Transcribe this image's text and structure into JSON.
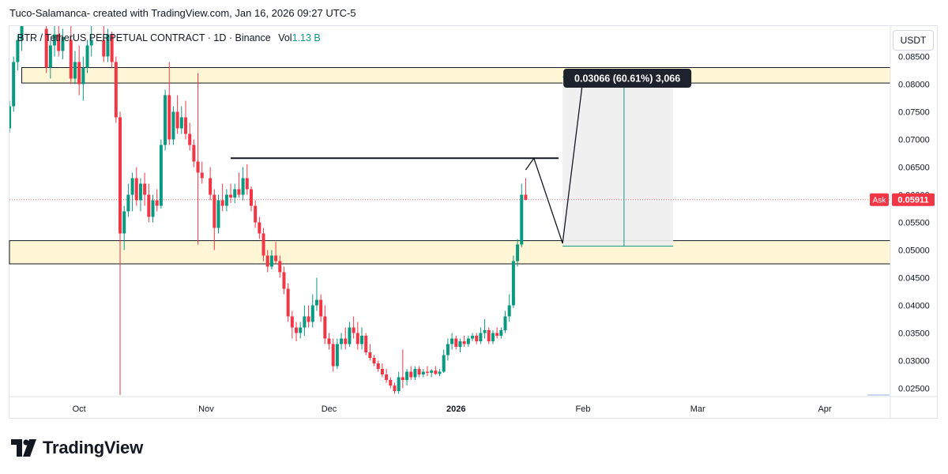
{
  "header": {
    "credit": "Tuco-Salamanca- created with TradingView.com, Jan 16, 2026 09:27 UTC-5"
  },
  "symbol": {
    "pair": "BTR / TetherUS PERPETUAL CONTRACT · 1D · Binance",
    "vol_label": "Vol",
    "vol_value": "1.13 B"
  },
  "currency_button": "USDT",
  "logo": {
    "text": "TradingView"
  },
  "colors": {
    "up": "#089981",
    "down": "#f23645",
    "zone_fill": "#fff6d5",
    "projection_fill": "#eeeeee",
    "ask": "#f23645"
  },
  "chart_data": {
    "type": "candlestick",
    "y_axis": {
      "range": [
        0.0235,
        0.0905
      ],
      "ticks": [
        "0.02500",
        "0.03000",
        "0.03500",
        "0.04000",
        "0.04500",
        "0.05000",
        "0.05500",
        "0.06000",
        "0.06500",
        "0.07000",
        "0.07500",
        "0.08000",
        "0.08500",
        "0.09000"
      ]
    },
    "x_axis": {
      "range": [
        "2025-09-14",
        "2026-04-17"
      ],
      "ticks": [
        {
          "label": "Oct",
          "date": "2025-10-01",
          "bold": false
        },
        {
          "label": "Nov",
          "date": "2025-11-01",
          "bold": false
        },
        {
          "label": "Dec",
          "date": "2025-12-01",
          "bold": false
        },
        {
          "label": "2026",
          "date": "2026-01-01",
          "bold": true
        },
        {
          "label": "Feb",
          "date": "2026-02-01",
          "bold": false
        },
        {
          "label": "Mar",
          "date": "2026-03-01",
          "bold": false
        },
        {
          "label": "Apr",
          "date": "2026-04-01",
          "bold": false
        }
      ]
    },
    "candles": [
      {
        "date": "2025-09-14",
        "o": 0.072,
        "h": 0.077,
        "l": 0.0712,
        "c": 0.076
      },
      {
        "date": "2025-09-15",
        "o": 0.076,
        "h": 0.085,
        "l": 0.075,
        "c": 0.084
      },
      {
        "date": "2025-09-16",
        "o": 0.084,
        "h": 0.089,
        "l": 0.0825,
        "c": 0.088
      },
      {
        "date": "2025-09-17",
        "o": 0.088,
        "h": 0.092,
        "l": 0.086,
        "c": 0.091
      },
      {
        "date": "2025-09-23",
        "o": 0.09,
        "h": 0.092,
        "l": 0.082,
        "c": 0.083
      },
      {
        "date": "2025-09-24",
        "o": 0.083,
        "h": 0.088,
        "l": 0.081,
        "c": 0.087
      },
      {
        "date": "2025-09-25",
        "o": 0.087,
        "h": 0.091,
        "l": 0.085,
        "c": 0.089
      },
      {
        "date": "2025-09-26",
        "o": 0.089,
        "h": 0.091,
        "l": 0.085,
        "c": 0.086
      },
      {
        "date": "2025-09-27",
        "o": 0.086,
        "h": 0.09,
        "l": 0.0845,
        "c": 0.0885
      },
      {
        "date": "2025-09-29",
        "o": 0.088,
        "h": 0.091,
        "l": 0.08,
        "c": 0.081
      },
      {
        "date": "2025-09-30",
        "o": 0.081,
        "h": 0.086,
        "l": 0.08,
        "c": 0.084
      },
      {
        "date": "2025-10-01",
        "o": 0.084,
        "h": 0.087,
        "l": 0.078,
        "c": 0.08
      },
      {
        "date": "2025-10-02",
        "o": 0.08,
        "h": 0.085,
        "l": 0.077,
        "c": 0.083
      },
      {
        "date": "2025-10-03",
        "o": 0.083,
        "h": 0.088,
        "l": 0.082,
        "c": 0.087
      },
      {
        "date": "2025-10-04",
        "o": 0.087,
        "h": 0.0905,
        "l": 0.085,
        "c": 0.088
      },
      {
        "date": "2025-10-07",
        "o": 0.088,
        "h": 0.091,
        "l": 0.084,
        "c": 0.085
      },
      {
        "date": "2025-10-08",
        "o": 0.085,
        "h": 0.09,
        "l": 0.084,
        "c": 0.089
      },
      {
        "date": "2025-10-09",
        "o": 0.089,
        "h": 0.0895,
        "l": 0.083,
        "c": 0.084
      },
      {
        "date": "2025-10-10",
        "o": 0.084,
        "h": 0.085,
        "l": 0.073,
        "c": 0.074
      },
      {
        "date": "2025-10-11",
        "o": 0.074,
        "h": 0.075,
        "l": 0.0238,
        "c": 0.053
      },
      {
        "date": "2025-10-12",
        "o": 0.053,
        "h": 0.058,
        "l": 0.05,
        "c": 0.057
      },
      {
        "date": "2025-10-13",
        "o": 0.057,
        "h": 0.062,
        "l": 0.056,
        "c": 0.06
      },
      {
        "date": "2025-10-14",
        "o": 0.06,
        "h": 0.064,
        "l": 0.057,
        "c": 0.063
      },
      {
        "date": "2025-10-15",
        "o": 0.063,
        "h": 0.065,
        "l": 0.058,
        "c": 0.059
      },
      {
        "date": "2025-10-16",
        "o": 0.059,
        "h": 0.063,
        "l": 0.057,
        "c": 0.062
      },
      {
        "date": "2025-10-17",
        "o": 0.062,
        "h": 0.064,
        "l": 0.058,
        "c": 0.06
      },
      {
        "date": "2025-10-18",
        "o": 0.06,
        "h": 0.062,
        "l": 0.055,
        "c": 0.056
      },
      {
        "date": "2025-10-19",
        "o": 0.056,
        "h": 0.06,
        "l": 0.055,
        "c": 0.059
      },
      {
        "date": "2025-10-20",
        "o": 0.059,
        "h": 0.061,
        "l": 0.057,
        "c": 0.058
      },
      {
        "date": "2025-10-21",
        "o": 0.058,
        "h": 0.07,
        "l": 0.0575,
        "c": 0.069
      },
      {
        "date": "2025-10-22",
        "o": 0.069,
        "h": 0.079,
        "l": 0.068,
        "c": 0.078
      },
      {
        "date": "2025-10-23",
        "o": 0.078,
        "h": 0.084,
        "l": 0.069,
        "c": 0.07
      },
      {
        "date": "2025-10-24",
        "o": 0.07,
        "h": 0.076,
        "l": 0.069,
        "c": 0.075
      },
      {
        "date": "2025-10-25",
        "o": 0.075,
        "h": 0.078,
        "l": 0.071,
        "c": 0.072
      },
      {
        "date": "2025-10-26",
        "o": 0.072,
        "h": 0.076,
        "l": 0.071,
        "c": 0.074
      },
      {
        "date": "2025-10-27",
        "o": 0.074,
        "h": 0.077,
        "l": 0.07,
        "c": 0.071
      },
      {
        "date": "2025-10-28",
        "o": 0.071,
        "h": 0.073,
        "l": 0.068,
        "c": 0.069
      },
      {
        "date": "2025-10-29",
        "o": 0.069,
        "h": 0.07,
        "l": 0.065,
        "c": 0.066
      },
      {
        "date": "2025-10-30",
        "o": 0.066,
        "h": 0.082,
        "l": 0.051,
        "c": 0.064
      },
      {
        "date": "2025-10-31",
        "o": 0.064,
        "h": 0.066,
        "l": 0.062,
        "c": 0.063
      },
      {
        "date": "2025-11-02",
        "o": 0.063,
        "h": 0.065,
        "l": 0.059,
        "c": 0.06
      },
      {
        "date": "2025-11-03",
        "o": 0.06,
        "h": 0.061,
        "l": 0.05,
        "c": 0.054
      },
      {
        "date": "2025-11-04",
        "o": 0.054,
        "h": 0.06,
        "l": 0.053,
        "c": 0.059
      },
      {
        "date": "2025-11-05",
        "o": 0.059,
        "h": 0.062,
        "l": 0.057,
        "c": 0.058
      },
      {
        "date": "2025-11-06",
        "o": 0.058,
        "h": 0.061,
        "l": 0.057,
        "c": 0.06
      },
      {
        "date": "2025-11-07",
        "o": 0.06,
        "h": 0.062,
        "l": 0.0585,
        "c": 0.0595
      },
      {
        "date": "2025-11-08",
        "o": 0.0595,
        "h": 0.062,
        "l": 0.0585,
        "c": 0.061
      },
      {
        "date": "2025-11-09",
        "o": 0.061,
        "h": 0.064,
        "l": 0.0595,
        "c": 0.06
      },
      {
        "date": "2025-11-10",
        "o": 0.06,
        "h": 0.065,
        "l": 0.059,
        "c": 0.063
      },
      {
        "date": "2025-11-11",
        "o": 0.063,
        "h": 0.0655,
        "l": 0.06,
        "c": 0.061
      },
      {
        "date": "2025-11-12",
        "o": 0.061,
        "h": 0.0615,
        "l": 0.057,
        "c": 0.058
      },
      {
        "date": "2025-11-13",
        "o": 0.058,
        "h": 0.059,
        "l": 0.054,
        "c": 0.055
      },
      {
        "date": "2025-11-14",
        "o": 0.055,
        "h": 0.056,
        "l": 0.052,
        "c": 0.053
      },
      {
        "date": "2025-11-15",
        "o": 0.053,
        "h": 0.054,
        "l": 0.048,
        "c": 0.049
      },
      {
        "date": "2025-11-16",
        "o": 0.049,
        "h": 0.05,
        "l": 0.046,
        "c": 0.047
      },
      {
        "date": "2025-11-17",
        "o": 0.047,
        "h": 0.05,
        "l": 0.0465,
        "c": 0.049
      },
      {
        "date": "2025-11-18",
        "o": 0.049,
        "h": 0.0515,
        "l": 0.0475,
        "c": 0.048
      },
      {
        "date": "2025-11-19",
        "o": 0.048,
        "h": 0.049,
        "l": 0.045,
        "c": 0.046
      },
      {
        "date": "2025-11-20",
        "o": 0.046,
        "h": 0.047,
        "l": 0.042,
        "c": 0.043
      },
      {
        "date": "2025-11-21",
        "o": 0.043,
        "h": 0.044,
        "l": 0.037,
        "c": 0.038
      },
      {
        "date": "2025-11-22",
        "o": 0.038,
        "h": 0.039,
        "l": 0.034,
        "c": 0.036
      },
      {
        "date": "2025-11-23",
        "o": 0.036,
        "h": 0.037,
        "l": 0.0335,
        "c": 0.035
      },
      {
        "date": "2025-11-24",
        "o": 0.035,
        "h": 0.037,
        "l": 0.034,
        "c": 0.036
      },
      {
        "date": "2025-11-25",
        "o": 0.036,
        "h": 0.04,
        "l": 0.0345,
        "c": 0.038
      },
      {
        "date": "2025-11-26",
        "o": 0.038,
        "h": 0.04,
        "l": 0.036,
        "c": 0.037
      },
      {
        "date": "2025-11-27",
        "o": 0.037,
        "h": 0.042,
        "l": 0.036,
        "c": 0.04
      },
      {
        "date": "2025-11-28",
        "o": 0.04,
        "h": 0.045,
        "l": 0.039,
        "c": 0.041
      },
      {
        "date": "2025-11-29",
        "o": 0.041,
        "h": 0.042,
        "l": 0.037,
        "c": 0.038
      },
      {
        "date": "2025-11-30",
        "o": 0.038,
        "h": 0.04,
        "l": 0.033,
        "c": 0.034
      },
      {
        "date": "2025-12-01",
        "o": 0.034,
        "h": 0.035,
        "l": 0.032,
        "c": 0.033
      },
      {
        "date": "2025-12-02",
        "o": 0.033,
        "h": 0.034,
        "l": 0.028,
        "c": 0.029
      },
      {
        "date": "2025-12-03",
        "o": 0.029,
        "h": 0.034,
        "l": 0.0285,
        "c": 0.033
      },
      {
        "date": "2025-12-04",
        "o": 0.033,
        "h": 0.035,
        "l": 0.032,
        "c": 0.034
      },
      {
        "date": "2025-12-05",
        "o": 0.034,
        "h": 0.036,
        "l": 0.032,
        "c": 0.033
      },
      {
        "date": "2025-12-06",
        "o": 0.033,
        "h": 0.037,
        "l": 0.0325,
        "c": 0.036
      },
      {
        "date": "2025-12-07",
        "o": 0.036,
        "h": 0.038,
        "l": 0.034,
        "c": 0.035
      },
      {
        "date": "2025-12-08",
        "o": 0.035,
        "h": 0.037,
        "l": 0.032,
        "c": 0.033
      },
      {
        "date": "2025-12-09",
        "o": 0.033,
        "h": 0.036,
        "l": 0.032,
        "c": 0.0345
      },
      {
        "date": "2025-12-10",
        "o": 0.0345,
        "h": 0.035,
        "l": 0.031,
        "c": 0.0315
      },
      {
        "date": "2025-12-11",
        "o": 0.0315,
        "h": 0.033,
        "l": 0.03,
        "c": 0.0305
      },
      {
        "date": "2025-12-12",
        "o": 0.0305,
        "h": 0.031,
        "l": 0.029,
        "c": 0.0295
      },
      {
        "date": "2025-12-13",
        "o": 0.0295,
        "h": 0.03,
        "l": 0.028,
        "c": 0.0285
      },
      {
        "date": "2025-12-14",
        "o": 0.0285,
        "h": 0.0295,
        "l": 0.027,
        "c": 0.0275
      },
      {
        "date": "2025-12-15",
        "o": 0.0275,
        "h": 0.0285,
        "l": 0.026,
        "c": 0.0265
      },
      {
        "date": "2025-12-16",
        "o": 0.0265,
        "h": 0.027,
        "l": 0.025,
        "c": 0.0255
      },
      {
        "date": "2025-12-17",
        "o": 0.0255,
        "h": 0.026,
        "l": 0.024,
        "c": 0.0245
      },
      {
        "date": "2025-12-18",
        "o": 0.0245,
        "h": 0.028,
        "l": 0.024,
        "c": 0.027
      },
      {
        "date": "2025-12-19",
        "o": 0.027,
        "h": 0.032,
        "l": 0.025,
        "c": 0.0265
      },
      {
        "date": "2025-12-20",
        "o": 0.0265,
        "h": 0.0285,
        "l": 0.0255,
        "c": 0.028
      },
      {
        "date": "2025-12-21",
        "o": 0.028,
        "h": 0.029,
        "l": 0.0265,
        "c": 0.027
      },
      {
        "date": "2025-12-22",
        "o": 0.027,
        "h": 0.029,
        "l": 0.0265,
        "c": 0.0285
      },
      {
        "date": "2025-12-23",
        "o": 0.0285,
        "h": 0.029,
        "l": 0.027,
        "c": 0.0275
      },
      {
        "date": "2025-12-24",
        "o": 0.0275,
        "h": 0.0285,
        "l": 0.027,
        "c": 0.028
      },
      {
        "date": "2025-12-25",
        "o": 0.028,
        "h": 0.029,
        "l": 0.0272,
        "c": 0.0278
      },
      {
        "date": "2025-12-26",
        "o": 0.0278,
        "h": 0.0285,
        "l": 0.027,
        "c": 0.0282
      },
      {
        "date": "2025-12-27",
        "o": 0.0282,
        "h": 0.029,
        "l": 0.0274,
        "c": 0.0276
      },
      {
        "date": "2025-12-28",
        "o": 0.0276,
        "h": 0.0285,
        "l": 0.0272,
        "c": 0.028
      },
      {
        "date": "2025-12-29",
        "o": 0.028,
        "h": 0.032,
        "l": 0.0278,
        "c": 0.031
      },
      {
        "date": "2025-12-30",
        "o": 0.031,
        "h": 0.034,
        "l": 0.03,
        "c": 0.033
      },
      {
        "date": "2025-12-31",
        "o": 0.033,
        "h": 0.035,
        "l": 0.032,
        "c": 0.034
      },
      {
        "date": "2026-01-01",
        "o": 0.034,
        "h": 0.0345,
        "l": 0.032,
        "c": 0.0325
      },
      {
        "date": "2026-01-02",
        "o": 0.0325,
        "h": 0.034,
        "l": 0.0315,
        "c": 0.0335
      },
      {
        "date": "2026-01-03",
        "o": 0.0335,
        "h": 0.0345,
        "l": 0.0325,
        "c": 0.033
      },
      {
        "date": "2026-01-04",
        "o": 0.033,
        "h": 0.0345,
        "l": 0.0325,
        "c": 0.034
      },
      {
        "date": "2026-01-05",
        "o": 0.034,
        "h": 0.035,
        "l": 0.0335,
        "c": 0.0345
      },
      {
        "date": "2026-01-06",
        "o": 0.0345,
        "h": 0.035,
        "l": 0.033,
        "c": 0.0335
      },
      {
        "date": "2026-01-07",
        "o": 0.0335,
        "h": 0.036,
        "l": 0.033,
        "c": 0.035
      },
      {
        "date": "2026-01-08",
        "o": 0.035,
        "h": 0.0375,
        "l": 0.034,
        "c": 0.0355
      },
      {
        "date": "2026-01-09",
        "o": 0.0355,
        "h": 0.036,
        "l": 0.033,
        "c": 0.0335
      },
      {
        "date": "2026-01-10",
        "o": 0.0335,
        "h": 0.0355,
        "l": 0.033,
        "c": 0.035
      },
      {
        "date": "2026-01-11",
        "o": 0.035,
        "h": 0.036,
        "l": 0.034,
        "c": 0.0345
      },
      {
        "date": "2026-01-12",
        "o": 0.0345,
        "h": 0.036,
        "l": 0.034,
        "c": 0.0355
      },
      {
        "date": "2026-01-13",
        "o": 0.0355,
        "h": 0.039,
        "l": 0.035,
        "c": 0.038
      },
      {
        "date": "2026-01-14",
        "o": 0.038,
        "h": 0.042,
        "l": 0.037,
        "c": 0.04
      },
      {
        "date": "2026-01-15",
        "o": 0.04,
        "h": 0.049,
        "l": 0.0395,
        "c": 0.048
      },
      {
        "date": "2026-01-16",
        "o": 0.048,
        "h": 0.052,
        "l": 0.047,
        "c": 0.051
      },
      {
        "date": "2026-01-17",
        "o": 0.051,
        "h": 0.062,
        "l": 0.0505,
        "c": 0.06
      },
      {
        "date": "2026-01-18",
        "o": 0.06,
        "h": 0.063,
        "l": 0.059,
        "c": 0.0591
      }
    ],
    "resistance_zone": {
      "low": 0.0802,
      "high": 0.083,
      "from": "2025-09-17",
      "to": "2026-04-17"
    },
    "support_zone": {
      "low": 0.0475,
      "high": 0.0517,
      "from": "2025-09-14",
      "to": "2026-04-17"
    },
    "horizontal_line": {
      "price": 0.0666,
      "from": "2025-11-07",
      "to": "2026-01-26"
    },
    "projection_path": [
      {
        "date": "2026-01-18",
        "price": 0.0645
      },
      {
        "date": "2026-01-20",
        "price": 0.0666
      },
      {
        "date": "2026-01-27",
        "price": 0.0512
      },
      {
        "date": "2026-02-01",
        "price": 0.081
      }
    ],
    "measure_box": {
      "from": "2026-01-27",
      "to": "2026-02-23",
      "low": 0.0507,
      "high": 0.0813,
      "arrow_date": "2026-02-11",
      "label": "0.03066 (60.61%) 3,066"
    },
    "ask": {
      "label": "Ask",
      "value": 0.05911,
      "value_text": "0.05911"
    }
  }
}
